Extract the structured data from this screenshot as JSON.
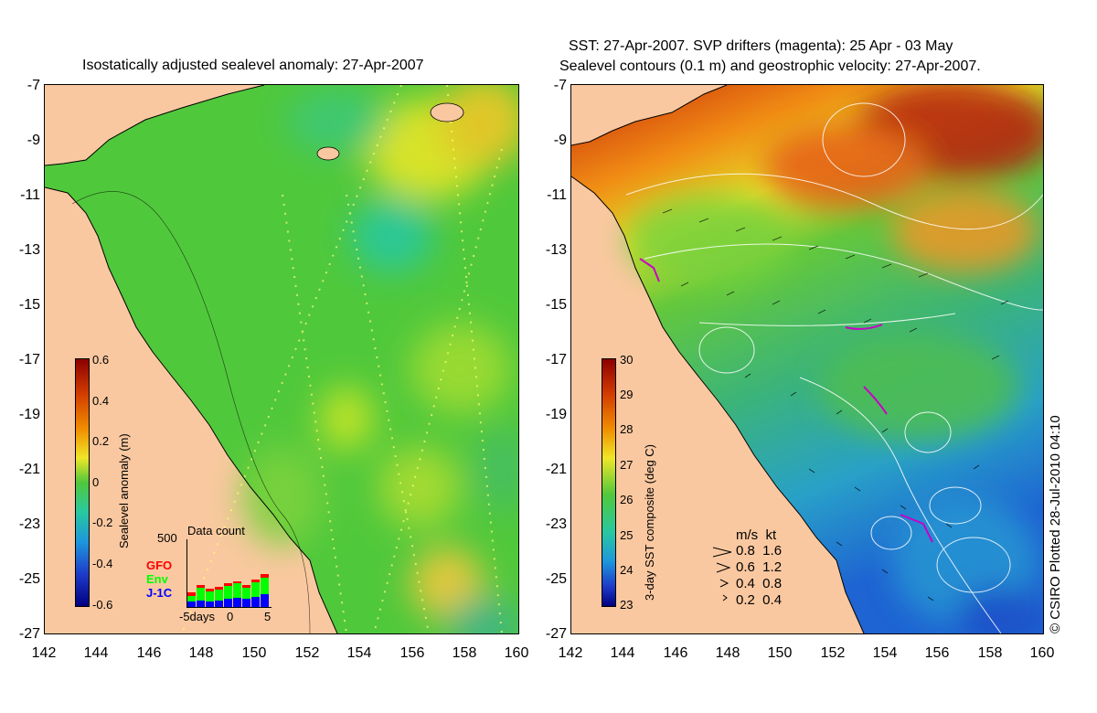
{
  "left_title": "Isostatically adjusted sealevel anomaly: 27-Apr-2007",
  "right_title_line1": "SST: 27-Apr-2007. SVP drifters (magenta): 25 Apr - 03 May",
  "right_title_line2": "Sealevel contours (0.1 m) and geostrophic velocity: 27-Apr-2007.",
  "credit": "© CSIRO Plotted 28-Jul-2010 04:10",
  "lat_ticks": [
    "-7",
    "-9",
    "-11",
    "-13",
    "-15",
    "-17",
    "-19",
    "-21",
    "-23",
    "-25",
    "-27"
  ],
  "lon_ticks": [
    "142",
    "144",
    "146",
    "148",
    "150",
    "152",
    "154",
    "156",
    "158",
    "160"
  ],
  "left_colorbar": {
    "label": "Sealevel anomaly (m)",
    "ticks": [
      "0.6",
      "0.4",
      "0.2",
      "0",
      "-0.2",
      "-0.4",
      "-0.6"
    ]
  },
  "right_colorbar": {
    "label": "3-day SST composite (deg C)",
    "ticks": [
      "30",
      "29",
      "28",
      "27",
      "26",
      "25",
      "24",
      "23"
    ]
  },
  "data_count": {
    "title": "Data count",
    "max": "500",
    "axis_left": "-5days",
    "axis_mid": "0",
    "axis_right": "5",
    "satellites": [
      {
        "name": "GFO",
        "color": "#ff0000"
      },
      {
        "name": "Env",
        "color": "#00ff00"
      },
      {
        "name": "J-1C",
        "color": "#0000ff"
      }
    ]
  },
  "velocity_legend": {
    "header": "m/s  kt",
    "rows": [
      "0.8  1.6",
      "0.6  1.2",
      "0.4  0.8",
      "0.2  0.4"
    ]
  },
  "colors": {
    "land": "#fac8a0",
    "sea_mid": "#50c83c",
    "warm_sst": "#c83c14"
  }
}
